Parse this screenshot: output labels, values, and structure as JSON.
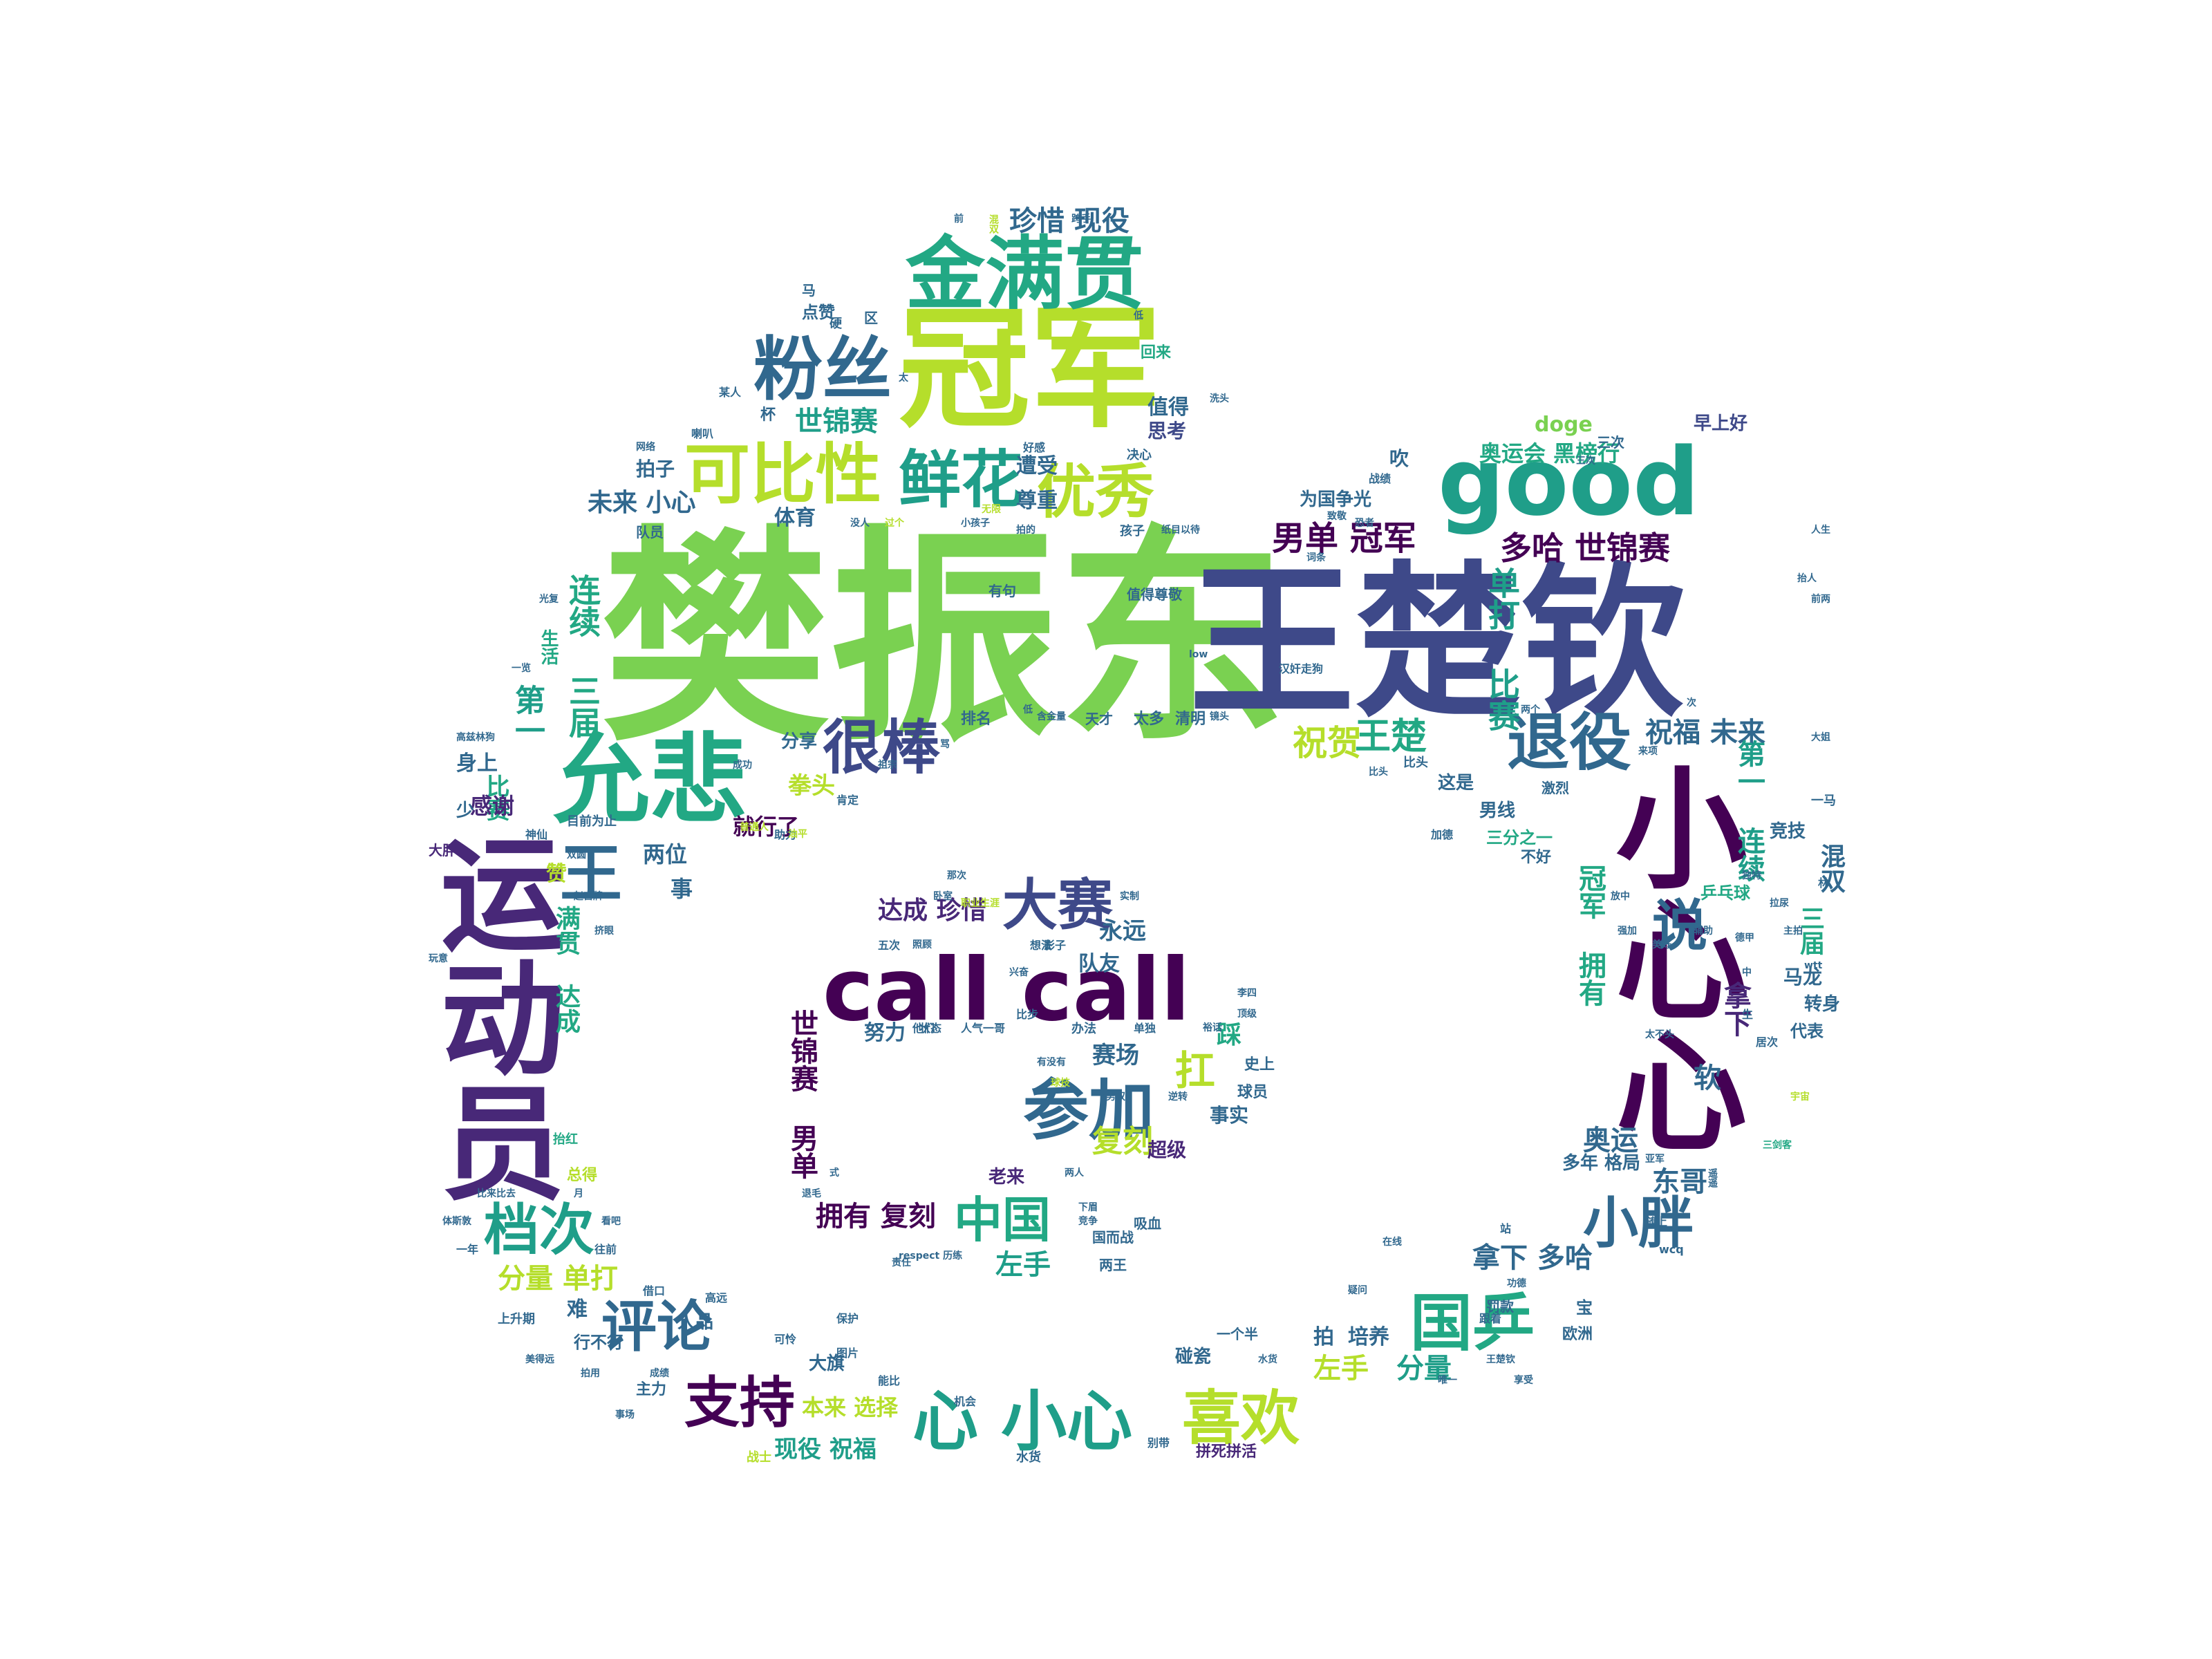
{
  "palette": {
    "lime": "#b5de2b",
    "green": "#7ad151",
    "teal": "#22a884",
    "cyan": "#1f9e89",
    "blue": "#31688e",
    "navy": "#3e4989",
    "purple": "#440154",
    "violet": "#482878",
    "yellow": "#fde725"
  },
  "words": [
    {
      "text": "樊振东",
      "color": "#7ad151"
    },
    {
      "text": "王楚钦",
      "color": "#3e4989"
    },
    {
      "text": "冠军",
      "color": "#b5de2b"
    },
    {
      "text": "金满贯",
      "color": "#22a884"
    },
    {
      "text": "粉丝",
      "color": "#31688e"
    },
    {
      "text": "可比性",
      "color": "#b5de2b"
    },
    {
      "text": "鲜花",
      "color": "#1f9e89"
    },
    {
      "text": "优秀",
      "color": "#b5de2b"
    },
    {
      "text": "good",
      "color": "#1f9e89"
    },
    {
      "text": "允悲",
      "color": "#22a884"
    },
    {
      "text": "很棒",
      "color": "#3e4989"
    },
    {
      "text": "退役",
      "color": "#31688e"
    },
    {
      "text": "运动员",
      "color": "#482878"
    },
    {
      "text": "小心心",
      "color": "#440154"
    },
    {
      "text": "call call",
      "color": "#440154"
    },
    {
      "text": "大赛",
      "color": "#3e4989"
    },
    {
      "text": "参加",
      "color": "#31688e"
    },
    {
      "text": "王",
      "color": "#31688e"
    },
    {
      "text": "说",
      "color": "#31688e"
    },
    {
      "text": "档次",
      "color": "#1f9e89"
    },
    {
      "text": "评论",
      "color": "#31688e"
    },
    {
      "text": "支持",
      "color": "#440154"
    },
    {
      "text": "心 小心",
      "color": "#1f9e89"
    },
    {
      "text": "喜欢",
      "color": "#b5de2b"
    },
    {
      "text": "国乒",
      "color": "#22a884"
    },
    {
      "text": "小胖",
      "color": "#31688e"
    },
    {
      "text": "中国",
      "color": "#22a884"
    },
    {
      "text": "珍惜 现役",
      "color": "#31688e"
    },
    {
      "text": "男单 冠军",
      "color": "#440154"
    },
    {
      "text": "多哈 世锦赛",
      "color": "#440154"
    },
    {
      "text": "祝贺",
      "color": "#b5de2b"
    },
    {
      "text": "王楚",
      "color": "#22a884"
    },
    {
      "text": "祝福 未来",
      "color": "#31688e"
    },
    {
      "text": "奥运会 黑榜行",
      "color": "#22a884"
    },
    {
      "text": "doge",
      "color": "#7ad151"
    },
    {
      "text": "早上好",
      "color": "#3e4989"
    },
    {
      "text": "为国争光",
      "color": "#31688e"
    },
    {
      "text": "未来 小心",
      "color": "#31688e"
    },
    {
      "text": "世锦赛",
      "color": "#1f9e89"
    },
    {
      "text": "拍子",
      "color": "#31688e"
    },
    {
      "text": "遭受",
      "color": "#31688e"
    },
    {
      "text": "尊重",
      "color": "#31688e"
    },
    {
      "text": "体育",
      "color": "#31688e"
    },
    {
      "text": "值得",
      "color": "#31688e"
    },
    {
      "text": "思考",
      "color": "#3e4989"
    },
    {
      "text": "连续 三届",
      "color": "#22a884"
    },
    {
      "text": "生活",
      "color": "#22a884"
    },
    {
      "text": "第一",
      "color": "#1f9e89"
    },
    {
      "text": "比赛",
      "color": "#22a884"
    },
    {
      "text": "单打 比赛",
      "color": "#1f9e89"
    },
    {
      "text": "分享",
      "color": "#31688e"
    },
    {
      "text": "拳头",
      "color": "#b5de2b"
    },
    {
      "text": "就行了",
      "color": "#440154"
    },
    {
      "text": "感谢",
      "color": "#482878"
    },
    {
      "text": "两位",
      "color": "#31688e"
    },
    {
      "text": "达成 珍惜",
      "color": "#482878"
    },
    {
      "text": "永远",
      "color": "#31688e"
    },
    {
      "text": "队友",
      "color": "#31688e"
    },
    {
      "text": "扛",
      "color": "#b5de2b"
    },
    {
      "text": "踩",
      "color": "#22a884"
    },
    {
      "text": "复刻",
      "color": "#b5de2b"
    },
    {
      "text": "拥有 复刻",
      "color": "#440154"
    },
    {
      "text": "左手",
      "color": "#1f9e89"
    },
    {
      "text": "分量 单打",
      "color": "#b5de2b"
    },
    {
      "text": "拿下 多哈",
      "color": "#31688e"
    },
    {
      "text": "分量",
      "color": "#1f9e89"
    },
    {
      "text": "左手",
      "color": "#b5de2b"
    },
    {
      "text": "现役 祝福",
      "color": "#1f9e89"
    },
    {
      "text": "本来 选择",
      "color": "#b5de2b"
    },
    {
      "text": "奥运",
      "color": "#31688e"
    },
    {
      "text": "东哥",
      "color": "#31688e"
    },
    {
      "text": "多年 格局",
      "color": "#31688e"
    },
    {
      "text": "冠军 拥有",
      "color": "#22a884"
    },
    {
      "text": "第一 连续",
      "color": "#1f9e89"
    },
    {
      "text": "混双",
      "color": "#31688e"
    },
    {
      "text": "三届",
      "color": "#22a884"
    },
    {
      "text": "拿下",
      "color": "#482878"
    },
    {
      "text": "软",
      "color": "#31688e"
    },
    {
      "text": "马龙",
      "color": "#31688e"
    },
    {
      "text": "转身",
      "color": "#31688e"
    },
    {
      "text": "男线",
      "color": "#31688e"
    },
    {
      "text": "三分之一",
      "color": "#22a884"
    },
    {
      "text": "竞技",
      "color": "#31688e"
    },
    {
      "text": "乒乓球",
      "color": "#22a884"
    },
    {
      "text": "满贯 达成",
      "color": "#22a884"
    },
    {
      "text": "世锦赛 男单",
      "color": "#440154"
    },
    {
      "text": "努力",
      "color": "#31688e"
    },
    {
      "text": "赛场",
      "color": "#31688e"
    },
    {
      "text": "事实",
      "color": "#31688e"
    },
    {
      "text": "超级",
      "color": "#482878"
    },
    {
      "text": "老来",
      "color": "#482878"
    },
    {
      "text": "身上",
      "color": "#31688e"
    },
    {
      "text": "少",
      "color": "#31688e"
    },
    {
      "text": "大胖",
      "color": "#482878"
    },
    {
      "text": "事",
      "color": "#31688e"
    },
    {
      "text": "赞",
      "color": "#b5de2b"
    },
    {
      "text": "难",
      "color": "#31688e"
    },
    {
      "text": "上升期",
      "color": "#31688e"
    },
    {
      "text": "行不行",
      "color": "#31688e"
    },
    {
      "text": "人品",
      "color": "#31688e"
    },
    {
      "text": "大旗",
      "color": "#31688e"
    },
    {
      "text": "主力",
      "color": "#31688e"
    },
    {
      "text": "拍",
      "color": "#31688e"
    },
    {
      "text": "培养",
      "color": "#31688e"
    },
    {
      "text": "拼死拼活",
      "color": "#482878"
    },
    {
      "text": "碰瓷",
      "color": "#31688e"
    },
    {
      "text": "一个半",
      "color": "#31688e"
    },
    {
      "text": "战士",
      "color": "#b5de2b"
    },
    {
      "text": "水货",
      "color": "#31688e"
    },
    {
      "text": "欧洲",
      "color": "#31688e"
    },
    {
      "text": "罚款",
      "color": "#31688e"
    },
    {
      "text": "宝",
      "color": "#31688e"
    },
    {
      "text": "代表",
      "color": "#31688e"
    },
    {
      "text": "史上",
      "color": "#31688e"
    },
    {
      "text": "球员",
      "color": "#31688e"
    },
    {
      "text": "吸血",
      "color": "#31688e"
    },
    {
      "text": "国而战",
      "color": "#31688e"
    },
    {
      "text": "两王",
      "color": "#31688e"
    },
    {
      "text": "排名",
      "color": "#31688e"
    },
    {
      "text": "太多",
      "color": "#31688e"
    },
    {
      "text": "清明",
      "color": "#31688e"
    },
    {
      "text": "天才",
      "color": "#31688e"
    },
    {
      "text": "这是",
      "color": "#31688e"
    },
    {
      "text": "不好",
      "color": "#31688e"
    },
    {
      "text": "激烈",
      "color": "#31688e"
    },
    {
      "text": "吹",
      "color": "#31688e"
    },
    {
      "text": "三次",
      "color": "#31688e"
    },
    {
      "text": "比头",
      "color": "#31688e"
    },
    {
      "text": "值得尊敬",
      "color": "#31688e"
    },
    {
      "text": "有句",
      "color": "#31688e"
    },
    {
      "text": "孩子",
      "color": "#31688e"
    },
    {
      "text": "队员",
      "color": "#31688e"
    },
    {
      "text": "点赞",
      "color": "#31688e"
    },
    {
      "text": "回来",
      "color": "#22a884"
    },
    {
      "text": "网络",
      "color": "#31688e"
    },
    {
      "text": "喇叭",
      "color": "#31688e"
    },
    {
      "text": "某人",
      "color": "#31688e"
    },
    {
      "text": "区",
      "color": "#31688e"
    },
    {
      "text": "硬",
      "color": "#31688e"
    },
    {
      "text": "马",
      "color": "#31688e"
    },
    {
      "text": "杯",
      "color": "#31688e"
    },
    {
      "text": "好感",
      "color": "#31688e"
    },
    {
      "text": "决心",
      "color": "#31688e"
    },
    {
      "text": "战绩",
      "color": "#31688e"
    },
    {
      "text": "致敬",
      "color": "#31688e"
    },
    {
      "text": "想法",
      "color": "#31688e"
    },
    {
      "text": "办法",
      "color": "#31688e"
    },
    {
      "text": "状态",
      "color": "#31688e"
    },
    {
      "text": "人气一哥",
      "color": "#31688e"
    },
    {
      "text": "比步",
      "color": "#31688e"
    },
    {
      "text": "五次",
      "color": "#31688e"
    },
    {
      "text": "影子",
      "color": "#31688e"
    },
    {
      "text": "他们",
      "color": "#31688e"
    },
    {
      "text": "单独",
      "color": "#31688e"
    },
    {
      "text": "目前为止",
      "color": "#31688e"
    },
    {
      "text": "神仙",
      "color": "#31688e"
    },
    {
      "text": "助力",
      "color": "#31688e"
    },
    {
      "text": "肯定",
      "color": "#31688e"
    },
    {
      "text": "一年",
      "color": "#31688e"
    },
    {
      "text": "往前",
      "color": "#31688e"
    },
    {
      "text": "高远",
      "color": "#31688e"
    },
    {
      "text": "借口",
      "color": "#31688e"
    },
    {
      "text": "可怜",
      "color": "#31688e"
    },
    {
      "text": "保护",
      "color": "#31688e"
    },
    {
      "text": "图片",
      "color": "#31688e"
    },
    {
      "text": "能比",
      "color": "#31688e"
    },
    {
      "text": "机会",
      "color": "#31688e"
    },
    {
      "text": "别带",
      "color": "#31688e"
    },
    {
      "text": "加德",
      "color": "#31688e"
    },
    {
      "text": "一马",
      "color": "#31688e"
    },
    {
      "text": "林",
      "color": "#31688e"
    },
    {
      "text": "生",
      "color": "#31688e"
    },
    {
      "text": "居次",
      "color": "#31688e"
    },
    {
      "text": "跟着",
      "color": "#31688e"
    },
    {
      "text": "站",
      "color": "#31688e"
    },
    {
      "text": "随上",
      "color": "#31688e"
    },
    {
      "text": "wcq",
      "color": "#31688e"
    },
    {
      "text": "月",
      "color": "#31688e"
    },
    {
      "text": "比来比去",
      "color": "#31688e"
    },
    {
      "text": "体斯敦",
      "color": "#31688e"
    },
    {
      "text": "看吧",
      "color": "#31688e"
    },
    {
      "text": "总得",
      "color": "#b5de2b"
    },
    {
      "text": "抬红",
      "color": "#22a884"
    },
    {
      "text": "玩意",
      "color": "#31688e"
    },
    {
      "text": "高兹林狗",
      "color": "#31688e"
    },
    {
      "text": "双圆",
      "color": "#31688e"
    },
    {
      "text": "光复",
      "color": "#31688e"
    },
    {
      "text": "一览",
      "color": "#31688e"
    },
    {
      "text": "低",
      "color": "#31688e"
    },
    {
      "text": "前",
      "color": "#31688e"
    },
    {
      "text": "跨手",
      "color": "#31688e"
    },
    {
      "text": "混双",
      "color": "#b5de2b"
    },
    {
      "text": "太",
      "color": "#31688e"
    },
    {
      "text": "洗头",
      "color": "#31688e"
    },
    {
      "text": "三次",
      "color": "#31688e"
    },
    {
      "text": "人生",
      "color": "#31688e"
    },
    {
      "text": "抬人",
      "color": "#31688e"
    },
    {
      "text": "恐者",
      "color": "#31688e"
    },
    {
      "text": "词条",
      "color": "#31688e"
    },
    {
      "text": "前两",
      "color": "#31688e"
    },
    {
      "text": "两个",
      "color": "#31688e"
    },
    {
      "text": "次",
      "color": "#31688e"
    },
    {
      "text": "大姐",
      "color": "#31688e"
    },
    {
      "text": "来项",
      "color": "#31688e"
    },
    {
      "text": "比头",
      "color": "#31688e"
    },
    {
      "text": "低",
      "color": "#31688e"
    },
    {
      "text": "low",
      "color": "#31688e"
    },
    {
      "text": "汉奸走狗",
      "color": "#31688e"
    },
    {
      "text": "太不头",
      "color": "#31688e"
    },
    {
      "text": "独特",
      "color": "#31688e"
    },
    {
      "text": "放中",
      "color": "#31688e"
    },
    {
      "text": "美好",
      "color": "#31688e"
    },
    {
      "text": "德甲",
      "color": "#31688e"
    },
    {
      "text": "中",
      "color": "#31688e"
    },
    {
      "text": "宇宙",
      "color": "#b5de2b"
    },
    {
      "text": "三剑客",
      "color": "#22a884"
    },
    {
      "text": "亚军",
      "color": "#31688e"
    },
    {
      "text": "遥遥",
      "color": "#31688e"
    },
    {
      "text": "在线",
      "color": "#31688e"
    },
    {
      "text": "王楚钦",
      "color": "#31688e"
    },
    {
      "text": "疑问",
      "color": "#31688e"
    },
    {
      "text": "功德",
      "color": "#31688e"
    },
    {
      "text": "享受",
      "color": "#31688e"
    },
    {
      "text": "唯一",
      "color": "#31688e"
    },
    {
      "text": "事场",
      "color": "#31688e"
    },
    {
      "text": "水货",
      "color": "#31688e"
    },
    {
      "text": "成绩",
      "color": "#31688e"
    },
    {
      "text": "美得远",
      "color": "#31688e"
    },
    {
      "text": "拍用",
      "color": "#31688e"
    },
    {
      "text": "退毛",
      "color": "#31688e"
    },
    {
      "text": "式",
      "color": "#31688e"
    },
    {
      "text": "两人",
      "color": "#31688e"
    },
    {
      "text": "下眉",
      "color": "#31688e"
    },
    {
      "text": "竞争",
      "color": "#31688e"
    },
    {
      "text": "责任",
      "color": "#31688e"
    },
    {
      "text": "respect 历练",
      "color": "#31688e"
    },
    {
      "text": "男双",
      "color": "#31688e"
    },
    {
      "text": "逆转",
      "color": "#31688e"
    },
    {
      "text": "强加",
      "color": "#31688e"
    },
    {
      "text": "辅助",
      "color": "#31688e"
    },
    {
      "text": "拉尿",
      "color": "#31688e"
    },
    {
      "text": "主拍",
      "color": "#31688e"
    },
    {
      "text": "wtt",
      "color": "#31688e"
    },
    {
      "text": "照顾",
      "color": "#31688e"
    },
    {
      "text": "卧室",
      "color": "#31688e"
    },
    {
      "text": "职业生涯",
      "color": "#b5de2b"
    },
    {
      "text": "实制",
      "color": "#31688e"
    },
    {
      "text": "那次",
      "color": "#31688e"
    },
    {
      "text": "有没有",
      "color": "#31688e"
    },
    {
      "text": "球技",
      "color": "#b5de2b"
    },
    {
      "text": "李四",
      "color": "#31688e"
    },
    {
      "text": "顶级",
      "color": "#31688e"
    },
    {
      "text": "裕话",
      "color": "#31688e"
    },
    {
      "text": "普通人",
      "color": "#b5de2b"
    },
    {
      "text": "油平",
      "color": "#b5de2b"
    },
    {
      "text": "祖宗",
      "color": "#31688e"
    },
    {
      "text": "骂",
      "color": "#31688e"
    },
    {
      "text": "拍的",
      "color": "#31688e"
    },
    {
      "text": "过个",
      "color": "#b5de2b"
    },
    {
      "text": "小孩子",
      "color": "#31688e"
    },
    {
      "text": "没人",
      "color": "#31688e"
    },
    {
      "text": "纸目以待",
      "color": "#31688e"
    },
    {
      "text": "无限",
      "color": "#b5de2b"
    },
    {
      "text": "赵宫牌",
      "color": "#31688e"
    },
    {
      "text": "挤眼",
      "color": "#31688e"
    },
    {
      "text": "兴奋",
      "color": "#31688e"
    },
    {
      "text": "成功",
      "color": "#31688e"
    },
    {
      "text": "含金量",
      "color": "#31688e"
    },
    {
      "text": "镜头",
      "color": "#31688e"
    },
    {
      "text": "时代",
      "color": "#b5de2b"
    },
    {
      "text": "祖国",
      "color": "#31688e"
    },
    {
      "text": "他敢",
      "color": "#31688e"
    }
  ]
}
